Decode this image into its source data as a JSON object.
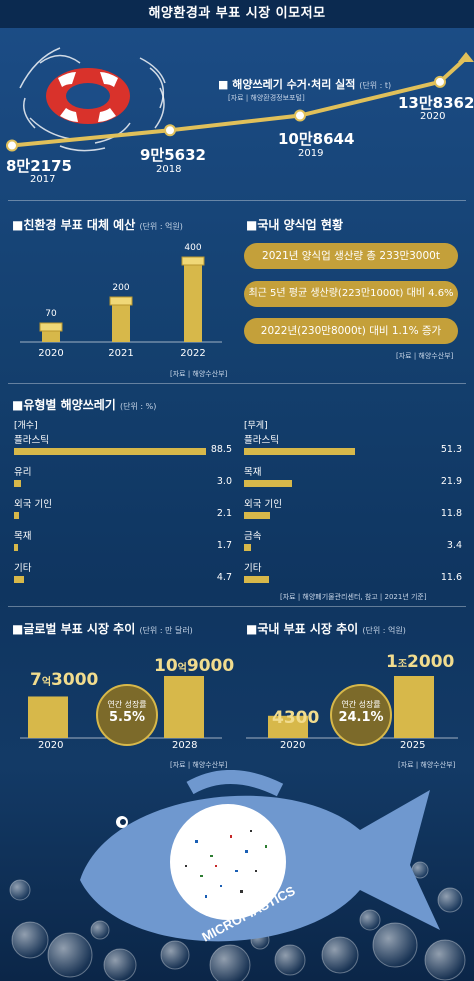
{
  "header": {
    "title": "해양환경과 부표 시장 이모저모"
  },
  "waste_collection": {
    "title": "해양쓰레기 수거·처리 실적",
    "unit": "(단위 : t)",
    "source": "[자료 | 해양환경정보포털]",
    "points": [
      {
        "year": "2017",
        "label": "8만2175",
        "value": 82175
      },
      {
        "year": "2018",
        "label": "9만5632",
        "value": 95632
      },
      {
        "year": "2019",
        "label": "10만8644",
        "value": 108644
      },
      {
        "year": "2020",
        "label": "13만8362",
        "value": 138362
      }
    ]
  },
  "eco_budget": {
    "title": "친환경 부표 대체 예산",
    "unit": "(단위 : 억원)",
    "source": "[자료 | 해양수산부]",
    "bars": [
      {
        "year": "2020",
        "value": 70
      },
      {
        "year": "2021",
        "value": 200
      },
      {
        "year": "2022",
        "value": 400
      }
    ]
  },
  "aquaculture": {
    "title": "국내 양식업 현황",
    "source": "[자료 | 해양수산부]",
    "facts": [
      "2021년 양식업 생산량 총 233만3000t",
      "최근 5년 평균 생산량(223만1000t) 대비 4.6%",
      "2022년(230만8000t) 대비 1.1% 증가"
    ]
  },
  "waste_by_type": {
    "title": "유형별 해양쓰레기",
    "unit": "(단위 : %)",
    "source": "[자료 | 해양폐기물관리센터, 참고 | 2021년 기준]",
    "count": {
      "label": "[개수]",
      "items": [
        {
          "name": "플라스틱",
          "value": 88.5,
          "label": "88.5"
        },
        {
          "name": "유리",
          "value": 3.0,
          "label": "3.0"
        },
        {
          "name": "외국 기인",
          "value": 2.1,
          "label": "2.1"
        },
        {
          "name": "목재",
          "value": 1.7,
          "label": "1.7"
        },
        {
          "name": "기타",
          "value": 4.7,
          "label": "4.7"
        }
      ]
    },
    "weight": {
      "label": "[무게]",
      "items": [
        {
          "name": "플라스틱",
          "value": 51.3,
          "label": "51.3"
        },
        {
          "name": "목재",
          "value": 21.9,
          "label": "21.9"
        },
        {
          "name": "외국 기인",
          "value": 11.8,
          "label": "11.8"
        },
        {
          "name": "금속",
          "value": 3.4,
          "label": "3.4"
        },
        {
          "name": "기타",
          "value": 11.6,
          "label": "11.6"
        }
      ]
    }
  },
  "global_buoy": {
    "title": "글로벌 부표 시장 추이",
    "unit": "(단위 : 만 달러)",
    "bars": [
      {
        "year": "2020",
        "value": 73000,
        "big": "7",
        "mid": "억",
        "rest": "3000"
      },
      {
        "year": "2028",
        "value": 109000,
        "big": "10",
        "mid": "억",
        "rest": "9000"
      }
    ],
    "growth_label": "연간 성장률",
    "growth_value": "5.5%"
  },
  "domestic_buoy": {
    "title": "국내 부표 시장 추이",
    "unit": "(단위 : 억원)",
    "bars": [
      {
        "year": "2020",
        "value": 4300,
        "big": "4300",
        "mid": "",
        "rest": ""
      },
      {
        "year": "2025",
        "value": 12000,
        "big": "1",
        "mid": "조",
        "rest": "2000"
      }
    ],
    "growth_label": "연간 성장률",
    "growth_value": "24.1%"
  },
  "bottom_source": "[자료 | 해양수산부]",
  "illustration": {
    "fish_text": "MICROPIASTICS"
  },
  "colors": {
    "gold": "#d7b84a",
    "gold_dark": "#c4a03a",
    "navy": "#0b2a50"
  },
  "chart_data": [
    {
      "type": "line",
      "title": "해양쓰레기 수거·처리 실적",
      "unit": "t",
      "categories": [
        "2017",
        "2018",
        "2019",
        "2020"
      ],
      "values": [
        82175,
        95632,
        108644,
        138362
      ]
    },
    {
      "type": "bar",
      "title": "친환경 부표 대체 예산",
      "unit": "억원",
      "categories": [
        "2020",
        "2021",
        "2022"
      ],
      "values": [
        70,
        200,
        400
      ]
    },
    {
      "type": "bar",
      "title": "유형별 해양쓰레기 [개수]",
      "unit": "%",
      "categories": [
        "플라스틱",
        "유리",
        "외국 기인",
        "목재",
        "기타"
      ],
      "values": [
        88.5,
        3.0,
        2.1,
        1.7,
        4.7
      ]
    },
    {
      "type": "bar",
      "title": "유형별 해양쓰레기 [무게]",
      "unit": "%",
      "categories": [
        "플라스틱",
        "목재",
        "외국 기인",
        "금속",
        "기타"
      ],
      "values": [
        51.3,
        21.9,
        11.8,
        3.4,
        11.6
      ]
    },
    {
      "type": "bar",
      "title": "글로벌 부표 시장 추이",
      "unit": "만 달러",
      "categories": [
        "2020",
        "2028"
      ],
      "values": [
        73000,
        109000
      ]
    },
    {
      "type": "bar",
      "title": "국내 부표 시장 추이",
      "unit": "억원",
      "categories": [
        "2020",
        "2025"
      ],
      "values": [
        4300,
        12000
      ]
    }
  ]
}
